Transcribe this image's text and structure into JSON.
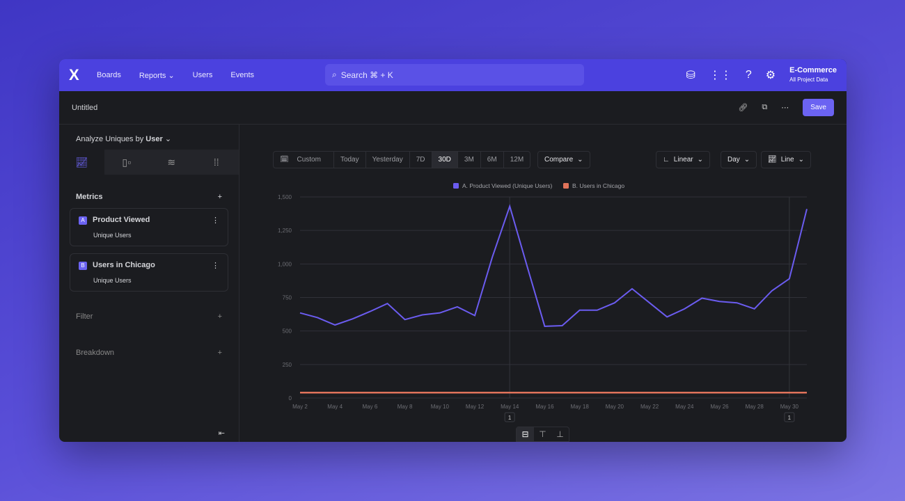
{
  "nav": {
    "logo": "X",
    "items": [
      "Boards",
      "Reports",
      "Users",
      "Events"
    ],
    "search": "Search  ⌘ + K",
    "project": "E-Commerce",
    "project_sub": "All Project Data"
  },
  "sub": {
    "title": "Untitled",
    "save": "Save"
  },
  "side": {
    "analyze_label": "Analyze Uniques by",
    "analyze_value": "User",
    "metrics": "Metrics",
    "filter": "Filter",
    "breakdown": "Breakdown",
    "cards": [
      {
        "badge": "A",
        "title": "Product Viewed",
        "sub": "Unique Users"
      },
      {
        "badge": "B",
        "title": "Users in Chicago",
        "sub": "Unique Users"
      }
    ]
  },
  "toolbar": {
    "ranges": [
      "Custom",
      "Today",
      "Yesterday",
      "7D",
      "30D",
      "3M",
      "6M",
      "12M"
    ],
    "selected": "30D",
    "compare": "Compare",
    "scale": "Linear",
    "interval": "Day",
    "chart_type": "Line"
  },
  "chart_data": {
    "type": "line",
    "x": [
      "May 2",
      "May 3",
      "May 4",
      "May 5",
      "May 6",
      "May 7",
      "May 8",
      "May 9",
      "May 10",
      "May 11",
      "May 12",
      "May 13",
      "May 14",
      "May 15",
      "May 16",
      "May 17",
      "May 18",
      "May 19",
      "May 20",
      "May 21",
      "May 22",
      "May 23",
      "May 24",
      "May 25",
      "May 26",
      "May 27",
      "May 28",
      "May 29",
      "May 30",
      "May 31"
    ],
    "xticks": [
      "May 2",
      "May 4",
      "May 6",
      "May 8",
      "May 10",
      "May 12",
      "May 14",
      "May 16",
      "May 18",
      "May 20",
      "May 22",
      "May 24",
      "May 26",
      "May 28",
      "May 30"
    ],
    "yticks": [
      "0",
      "250",
      "500",
      "750",
      "1,000",
      "1,250",
      "1,500"
    ],
    "ylim": [
      0,
      1500
    ],
    "grid": true,
    "legend": "top-center",
    "series": [
      {
        "name": "A. Product Viewed (Unique Users)",
        "color": "#6b5cf0",
        "values": [
          635,
          600,
          545,
          590,
          645,
          705,
          585,
          620,
          635,
          680,
          615,
          1050,
          1430,
          980,
          535,
          540,
          655,
          655,
          710,
          815,
          710,
          605,
          665,
          745,
          720,
          710,
          665,
          800,
          890,
          1410
        ]
      },
      {
        "name": "B. Users in Chicago",
        "color": "#e0735a",
        "values": [
          40,
          40,
          40,
          40,
          40,
          40,
          40,
          40,
          40,
          40,
          40,
          40,
          40,
          40,
          40,
          40,
          40,
          40,
          40,
          40,
          40,
          40,
          40,
          40,
          40,
          40,
          40,
          40,
          40,
          40
        ]
      }
    ],
    "annotations": [
      {
        "x": "May 13",
        "label": "1"
      },
      {
        "x": "May 30",
        "label": "1"
      }
    ]
  }
}
